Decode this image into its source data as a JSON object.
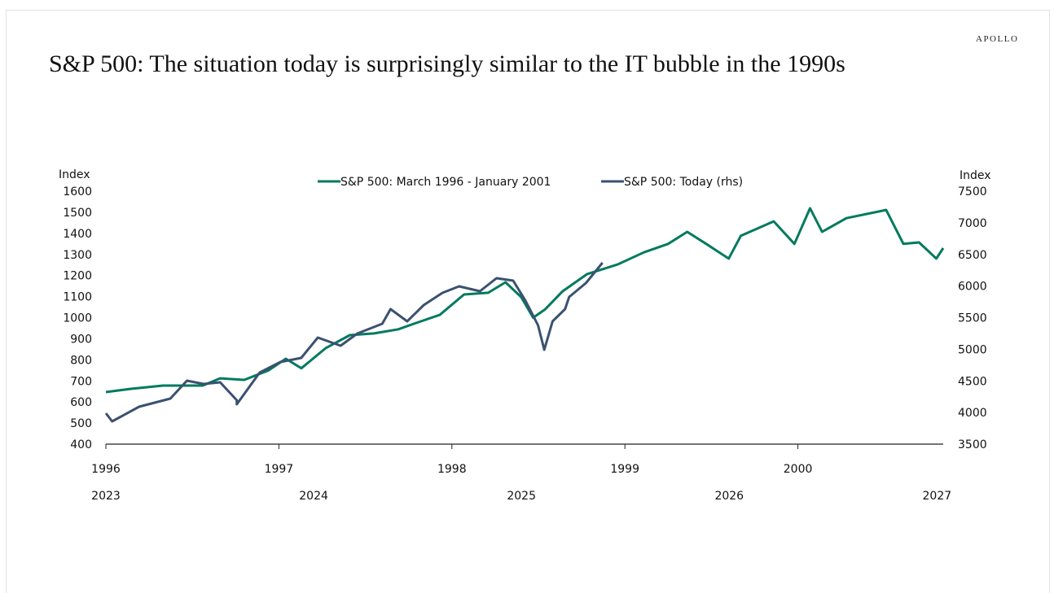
{
  "brand": "APOLLO",
  "title": "S&P 500: The situation today is surprisingly similar to the IT bubble in the 1990s",
  "chart_data": {
    "type": "line",
    "title": "S&P 500: The situation today is surprisingly similar to the IT bubble in the 1990s",
    "left_axis": {
      "label": "Index",
      "ylim": [
        400,
        1600
      ],
      "ticks": [
        400,
        500,
        600,
        700,
        800,
        900,
        1000,
        1100,
        1200,
        1300,
        1400,
        1500,
        1600
      ]
    },
    "right_axis": {
      "label": "Index",
      "ylim": [
        3500,
        7500
      ],
      "ticks": [
        3500,
        4000,
        4500,
        5000,
        5500,
        6000,
        6500,
        7000,
        7500
      ]
    },
    "x_axis_top": {
      "xlim": [
        1996,
        2000.84
      ],
      "ticks": [
        "1996",
        "1997",
        "1998",
        "1999",
        "2000"
      ]
    },
    "x_axis_bottom": {
      "xlim": [
        2023,
        2027.03
      ],
      "ticks": [
        "2023",
        "2024",
        "2025",
        "2026",
        "2027"
      ]
    },
    "legend_position": "top-center",
    "colors": {
      "green": "#007a5e",
      "blue": "#3b5171"
    },
    "series": [
      {
        "name": "S&P 500: March 1996 - January 2001",
        "axis": "left",
        "x_axis": "top",
        "x": [
          1996.0,
          1996.14,
          1996.33,
          1996.56,
          1996.66,
          1996.8,
          1996.94,
          1997.04,
          1997.13,
          1997.27,
          1997.41,
          1997.55,
          1997.69,
          1997.78,
          1997.93,
          1998.07,
          1998.21,
          1998.31,
          1998.4,
          1998.47,
          1998.54,
          1998.64,
          1998.78,
          1998.96,
          1999.11,
          1999.25,
          1999.36,
          1999.47,
          1999.6,
          1999.67,
          1999.86,
          1999.98,
          2000.07,
          2000.14,
          2000.28,
          2000.51,
          2000.61,
          2000.7,
          2000.8,
          2000.84
        ],
        "y": [
          647,
          662,
          678,
          678,
          712,
          705,
          750,
          805,
          760,
          855,
          917,
          925,
          945,
          971,
          1013,
          1110,
          1118,
          1168,
          1098,
          1000,
          1040,
          1125,
          1206,
          1253,
          1310,
          1350,
          1407,
          1350,
          1280,
          1388,
          1457,
          1350,
          1519,
          1407,
          1472,
          1511,
          1350,
          1357,
          1280,
          1330
        ]
      },
      {
        "name": "S&P 500: Today (rhs)",
        "axis": "right",
        "x_axis": "bottom",
        "x": [
          2023.0,
          2023.03,
          2023.16,
          2023.31,
          2023.39,
          2023.47,
          2023.55,
          2023.63,
          2023.63,
          2023.74,
          2023.84,
          2023.94,
          2024.02,
          2024.13,
          2024.21,
          2024.33,
          2024.37,
          2024.45,
          2024.53,
          2024.62,
          2024.7,
          2024.8,
          2024.88,
          2024.96,
          2025.02,
          2025.08,
          2025.11,
          2025.15,
          2025.21,
          2025.23,
          2025.31,
          2025.39
        ],
        "y": [
          3989,
          3860,
          4092,
          4220,
          4503,
          4452,
          4478,
          4195,
          4130,
          4632,
          4799,
          4863,
          5185,
          5056,
          5249,
          5403,
          5635,
          5442,
          5699,
          5892,
          5995,
          5918,
          6124,
          6085,
          5764,
          5378,
          4992,
          5442,
          5635,
          5828,
          6046,
          6368
        ]
      }
    ]
  }
}
